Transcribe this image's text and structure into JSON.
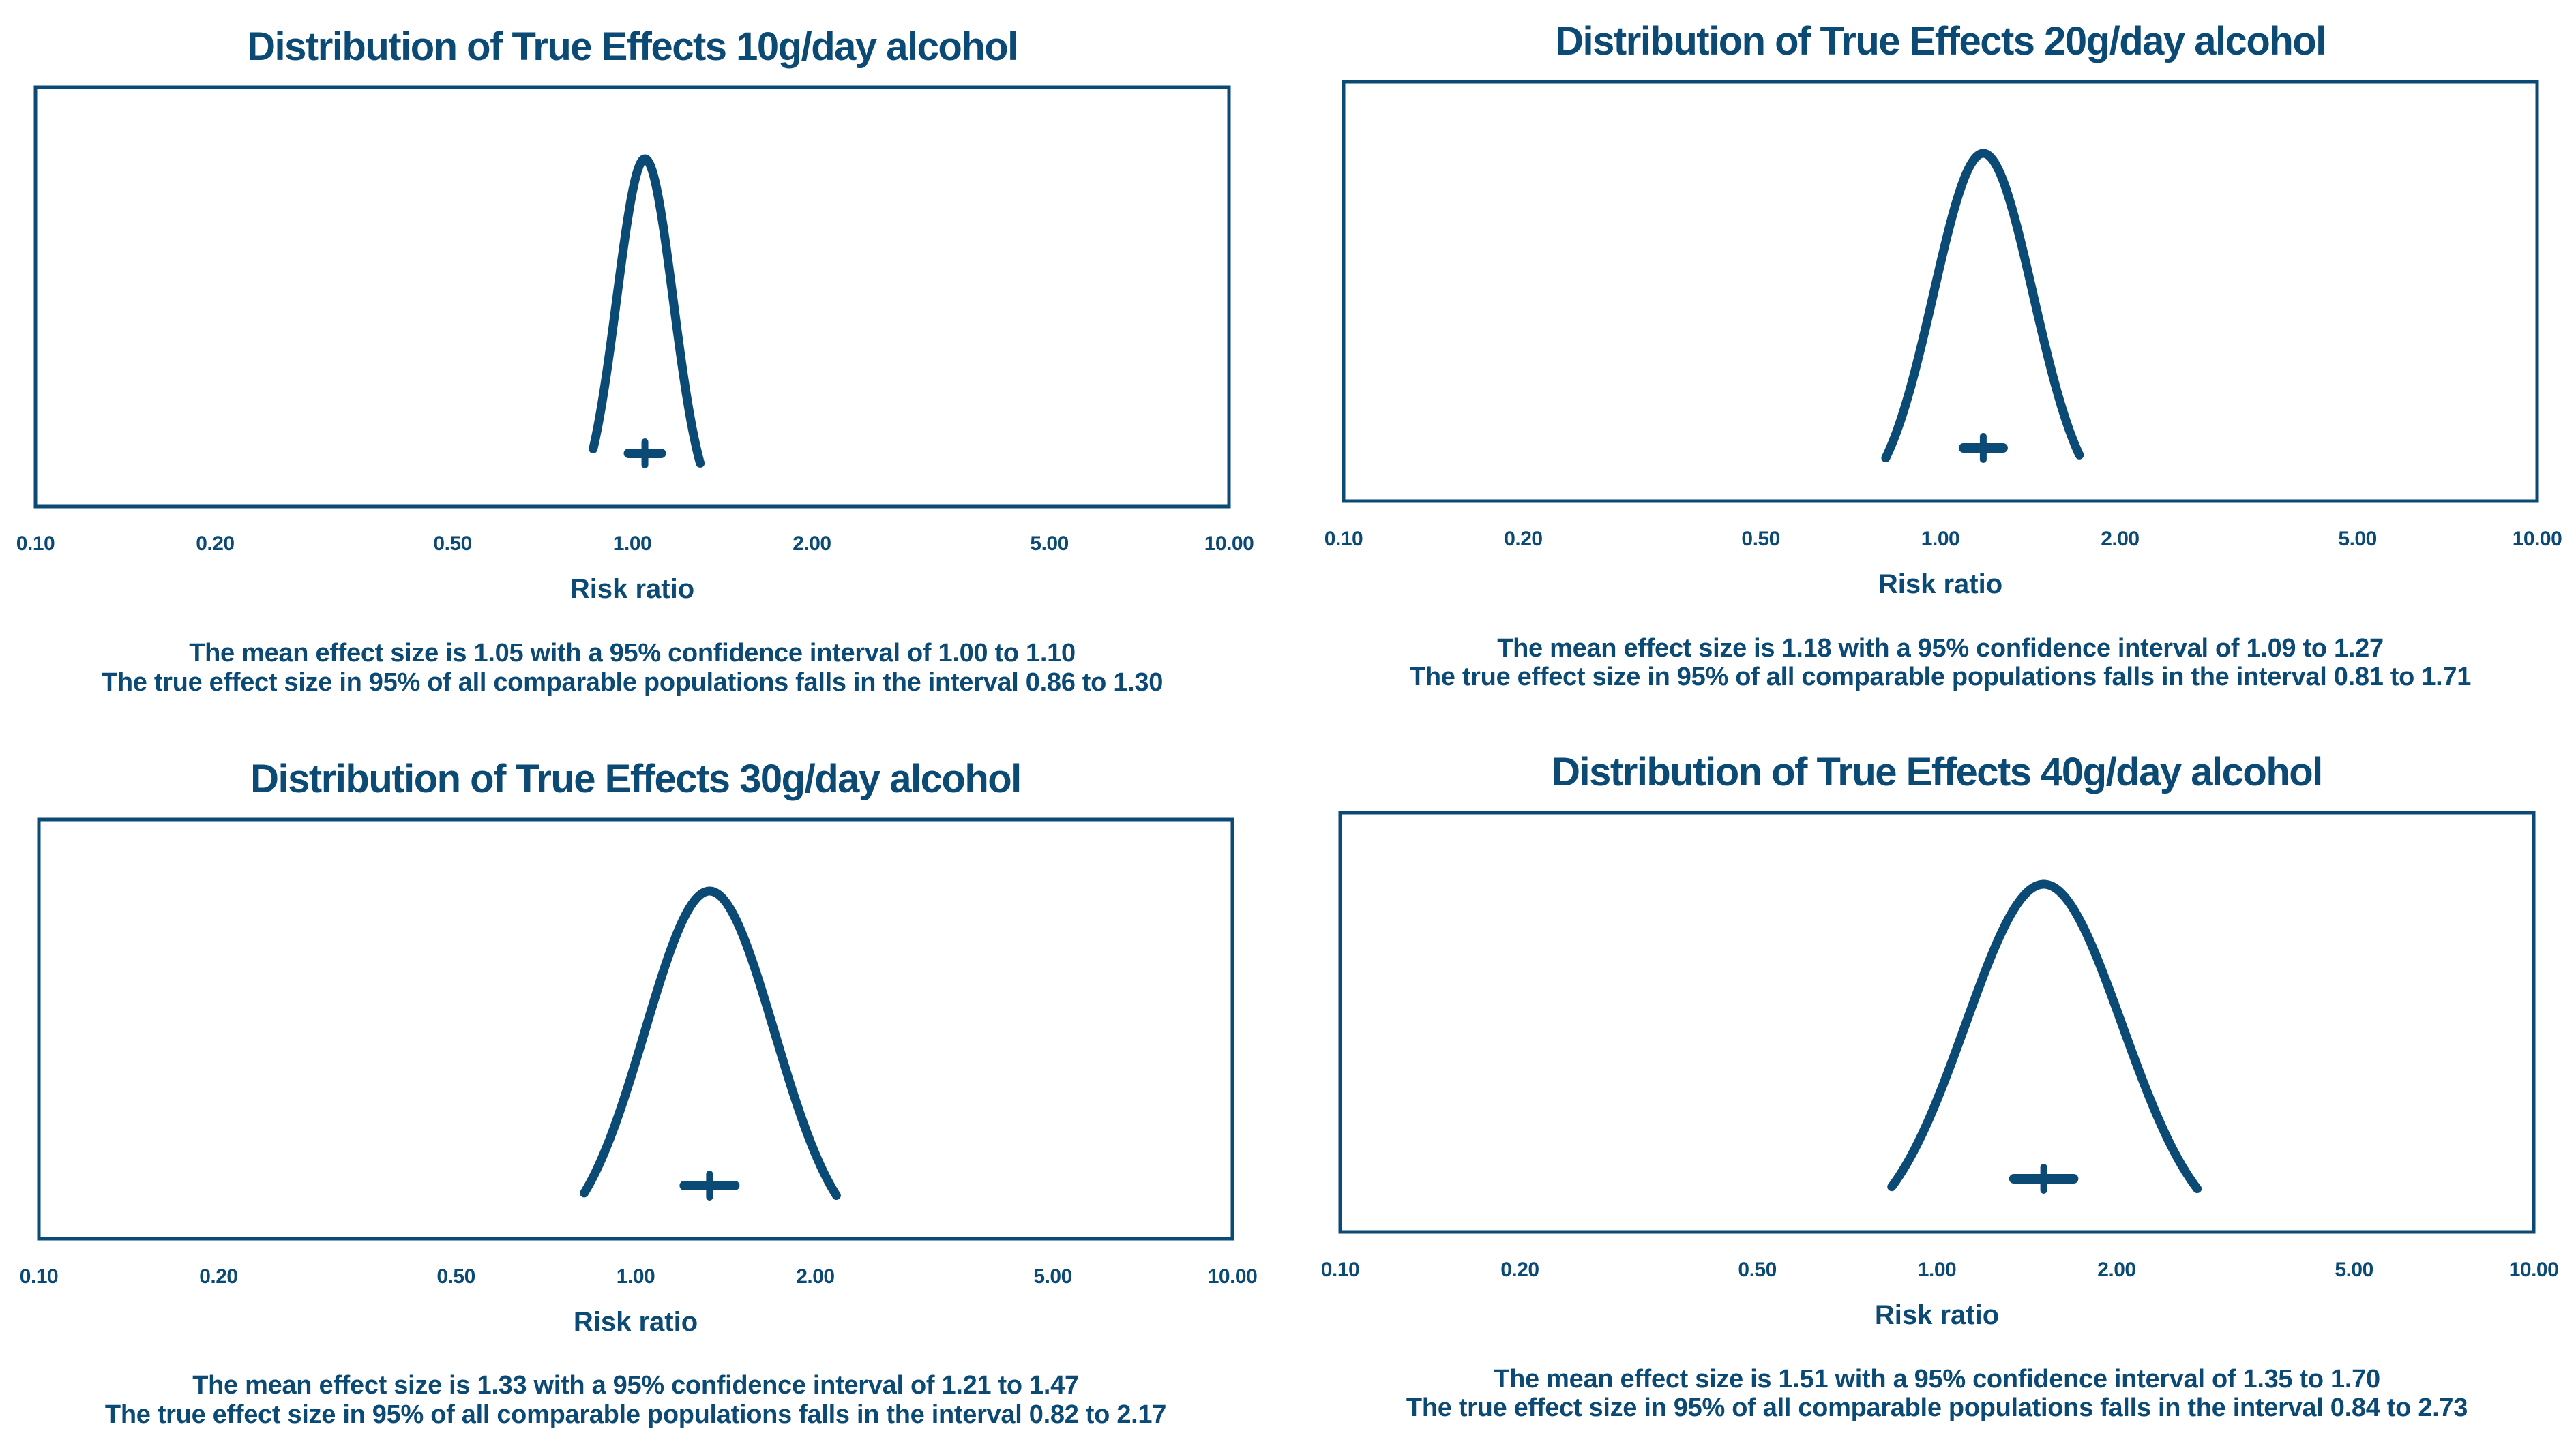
{
  "colors": {
    "primary": "#0b4a75",
    "background": "#ffffff"
  },
  "chart_data": [
    {
      "type": "line",
      "title": "Distribution of True Effects 10g/day alcohol",
      "xlabel": "Risk ratio",
      "x_scale": "log",
      "xlim": [
        0.1,
        10.0
      ],
      "ticks": [
        "0.10",
        "0.20",
        "0.50",
        "1.00",
        "2.00",
        "5.00",
        "10.00"
      ],
      "mean": 1.05,
      "ci": [
        1.0,
        1.1
      ],
      "prediction_interval": [
        0.86,
        1.3
      ],
      "summary_lines": [
        "The mean effect size is 1.05 with a 95% confidence interval of 1.00 to 1.10",
        "The true effect size in 95% of all comparable populations falls in the interval 0.86 to 1.30"
      ]
    },
    {
      "type": "line",
      "title": "Distribution of True Effects 20g/day alcohol",
      "xlabel": "Risk ratio",
      "x_scale": "log",
      "xlim": [
        0.1,
        10.0
      ],
      "ticks": [
        "0.10",
        "0.20",
        "0.50",
        "1.00",
        "2.00",
        "5.00",
        "10.00"
      ],
      "mean": 1.18,
      "ci": [
        1.09,
        1.27
      ],
      "prediction_interval": [
        0.81,
        1.71
      ],
      "summary_lines": [
        "The mean effect size is 1.18 with a 95% confidence interval of 1.09 to 1.27",
        "The true effect size in 95% of all comparable populations falls in the interval 0.81 to 1.71"
      ]
    },
    {
      "type": "line",
      "title": "Distribution of True Effects 30g/day alcohol",
      "xlabel": "Risk ratio",
      "x_scale": "log",
      "xlim": [
        0.1,
        10.0
      ],
      "ticks": [
        "0.10",
        "0.20",
        "0.50",
        "1.00",
        "2.00",
        "5.00",
        "10.00"
      ],
      "mean": 1.33,
      "ci": [
        1.21,
        1.47
      ],
      "prediction_interval": [
        0.82,
        2.17
      ],
      "summary_lines": [
        "The mean effect size is 1.33 with a 95% confidence interval of 1.21 to 1.47",
        "The true effect size in 95% of all comparable populations falls in the interval 0.82 to 2.17"
      ]
    },
    {
      "type": "line",
      "title": "Distribution of True Effects 40g/day alcohol",
      "xlabel": "Risk ratio",
      "x_scale": "log",
      "xlim": [
        0.1,
        10.0
      ],
      "ticks": [
        "0.10",
        "0.20",
        "0.50",
        "1.00",
        "2.00",
        "5.00",
        "10.00"
      ],
      "mean": 1.51,
      "ci": [
        1.35,
        1.7
      ],
      "prediction_interval": [
        0.84,
        2.73
      ],
      "summary_lines": [
        "The mean effect size is 1.51 with a 95% confidence interval of 1.35 to 1.70",
        "The true effect size in 95% of all comparable populations falls in the interval 0.84 to 2.73"
      ]
    }
  ]
}
